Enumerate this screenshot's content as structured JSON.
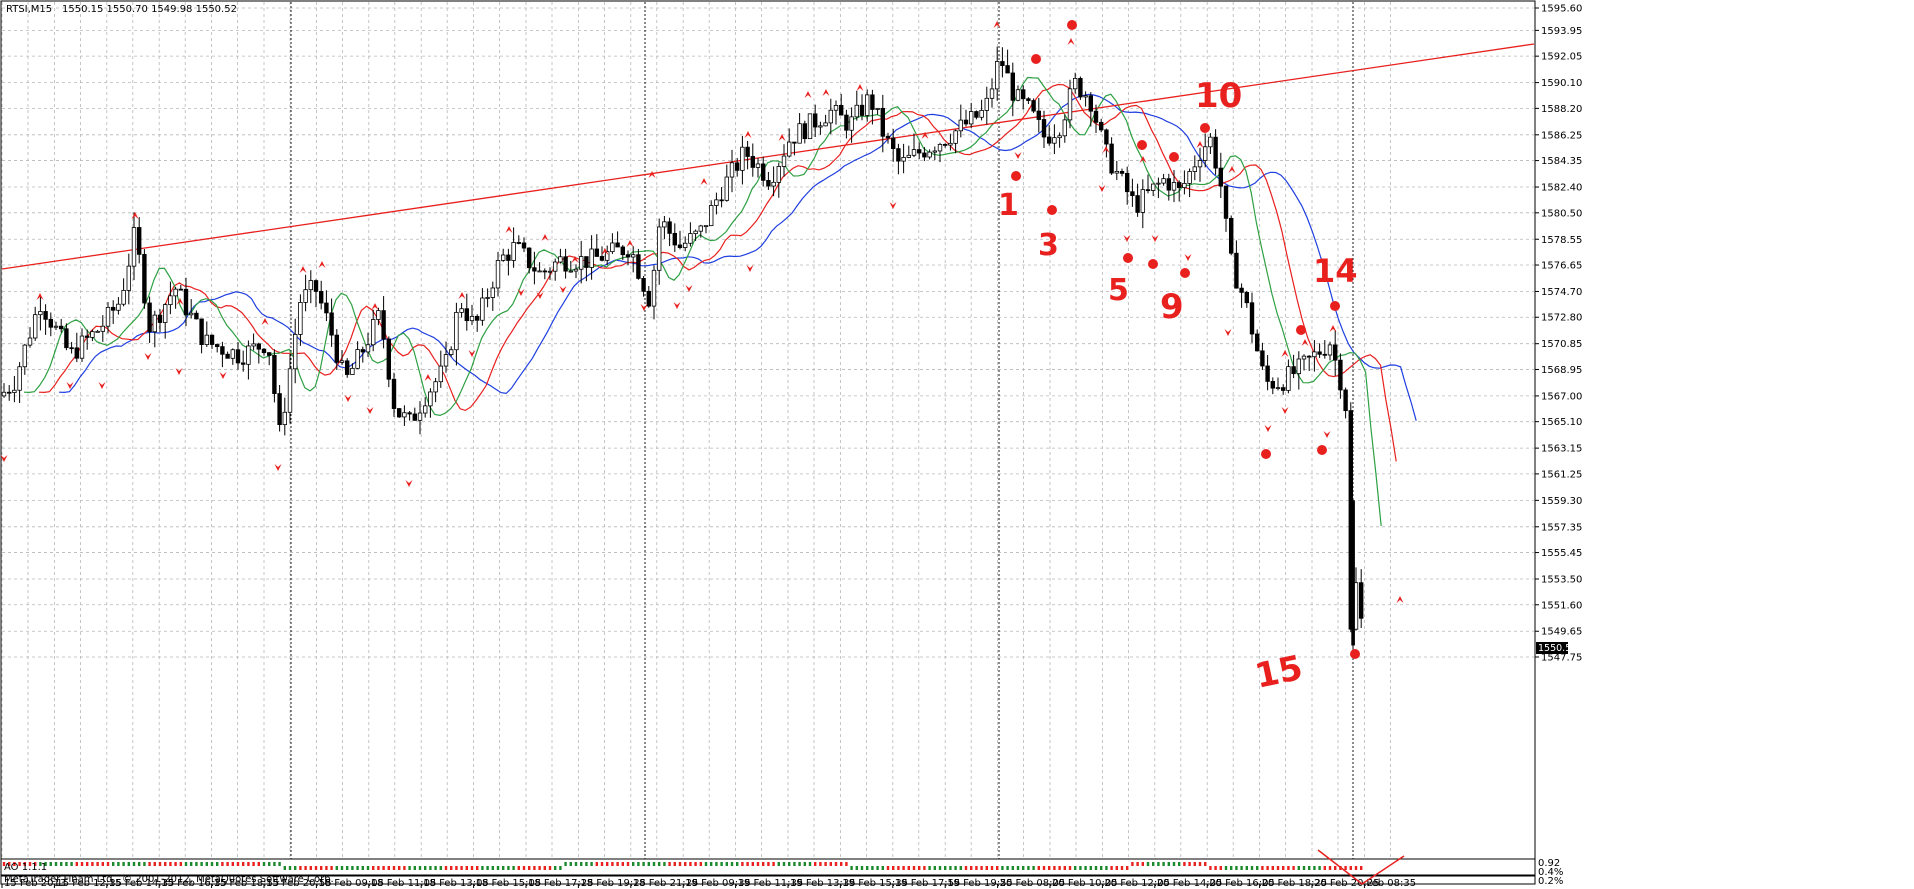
{
  "header": {
    "symbol_timeframe": "RTSI,M15",
    "ohlc": "1550.15 1550.70 1549.98 1550.52"
  },
  "copyright": "MetaTrader Finam Ltd., © 2001-2012, MetaQuotes Software Corp.",
  "current_price": "1550.52",
  "price_labels": [
    "1595.60",
    "1593.95",
    "1592.05",
    "1590.10",
    "1588.20",
    "1586.25",
    "1584.35",
    "1582.40",
    "1580.50",
    "1578.55",
    "1576.65",
    "1574.70",
    "1572.80",
    "1570.85",
    "1568.95",
    "1567.00",
    "1565.10",
    "1563.15",
    "1561.25",
    "1559.30",
    "1557.35",
    "1555.45",
    "1553.50",
    "1551.60",
    "1549.65",
    "1547.75"
  ],
  "time_labels": [
    "15 Feb 2013",
    "15 Feb 12:35",
    "15 Feb 14:35",
    "15 Feb 16:35",
    "15 Feb 18:55",
    "15 Feb 20:55",
    "18 Feb 09:05",
    "18 Feb 11:05",
    "18 Feb 13:05",
    "18 Feb 15:05",
    "18 Feb 17:25",
    "18 Feb 19:25",
    "18 Feb 21:25",
    "19 Feb 09:35",
    "19 Feb 11:35",
    "19 Feb 13:35",
    "19 Feb 15:35",
    "19 Feb 17:55",
    "19 Feb 19:55",
    "20 Feb 08:05",
    "20 Feb 10:05",
    "20 Feb 12:05",
    "20 Feb 14:05",
    "20 Feb 16:05",
    "20 Feb 18:25",
    "20 Feb 20:25",
    "Feb 08:35"
  ],
  "indicator_window": {
    "name": "AO 1.1.1",
    "scale_top": "0.92",
    "scale_mid": "0.4%",
    "scale_bot": "0.2%"
  },
  "annotations": [
    "1",
    "3",
    "5",
    "9",
    "10",
    "14",
    "15"
  ],
  "colors": {
    "trendline": "#e8201e",
    "ma_fast": "#2ea043",
    "ma_mid": "#e8201e",
    "ma_slow": "#1f3fe0",
    "candle": "#000000",
    "fractal": "#e8201e"
  }
}
